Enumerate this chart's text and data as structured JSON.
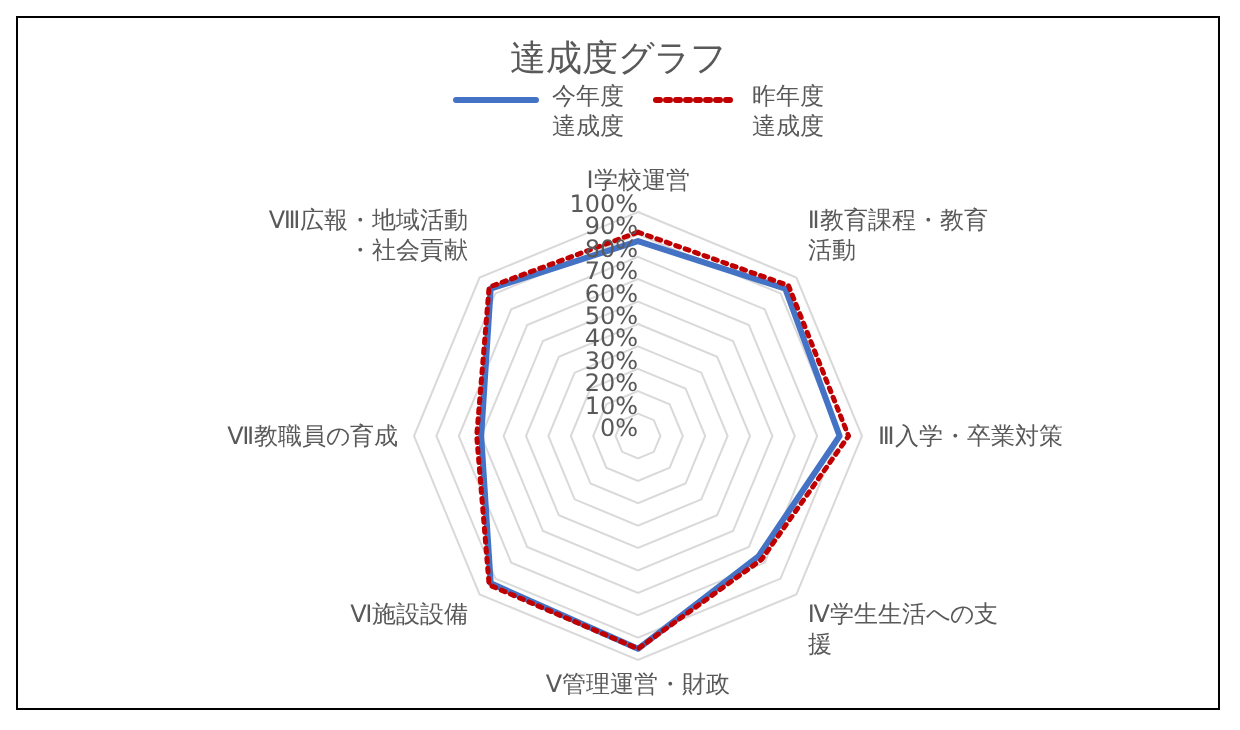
{
  "chart_data": {
    "type": "radar",
    "title": "達成度グラフ",
    "categories": [
      "Ⅰ学校運営",
      "Ⅱ教育課程・教育活動",
      "Ⅲ入学・卒業対策",
      "Ⅳ学生生活への支援",
      "Ⅴ管理運営・財政",
      "Ⅵ施設設備",
      "Ⅶ教職員の育成",
      "Ⅷ広報・地域活動・社会貢献"
    ],
    "series": [
      {
        "name": "今年度達成度",
        "color": "#4472c4",
        "line_style": "solid",
        "values": [
          87,
          93,
          90,
          76,
          95,
          93,
          70,
          93
        ]
      },
      {
        "name": "昨年度達成度",
        "color": "#c00000",
        "line_style": "dotted",
        "values": [
          91,
          95,
          94,
          78,
          95,
          94,
          72,
          94
        ]
      }
    ],
    "ylim": [
      0,
      100
    ],
    "yticks": [
      {
        "value": 0,
        "label": "0%"
      },
      {
        "value": 10,
        "label": "10%"
      },
      {
        "value": 20,
        "label": "20%"
      },
      {
        "value": 30,
        "label": "30%"
      },
      {
        "value": 40,
        "label": "40%"
      },
      {
        "value": 50,
        "label": "50%"
      },
      {
        "value": 60,
        "label": "60%"
      },
      {
        "value": 70,
        "label": "70%"
      },
      {
        "value": 80,
        "label": "80%"
      },
      {
        "value": 90,
        "label": "90%"
      },
      {
        "value": 100,
        "label": "100%"
      }
    ],
    "grid": true,
    "legend": "top",
    "marker": "none"
  }
}
